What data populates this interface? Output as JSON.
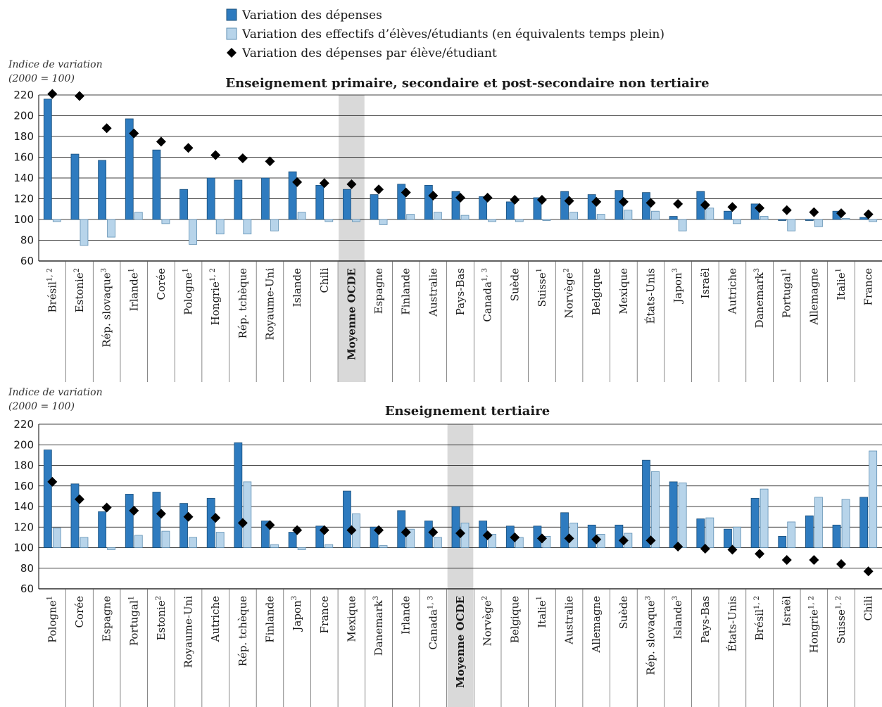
{
  "colors": {
    "expenditure": "#2e7bbf",
    "expenditure_edge": "#1b4f7a",
    "students": "#b7d4ea",
    "students_edge": "#5f8fb3",
    "per_student": "#000000",
    "average_band": "#d9d9d9",
    "grid": "#000000"
  },
  "legend": [
    {
      "label": "Variation des dépenses",
      "kind": "dark-bar"
    },
    {
      "label": "Variation des effectifs d’élèves/étudiants (en équivalents temps plein)",
      "kind": "light-bar"
    },
    {
      "label": "Variation des dépenses par élève/étudiant",
      "kind": "diamond"
    }
  ],
  "chart_data": [
    {
      "type": "bar",
      "title": "Enseignement primaire, secondaire et post-secondaire non tertiaire",
      "ylabel_line1": "Indice de variation",
      "ylabel_line2": "(2000 = 100)",
      "ylim": [
        60,
        220
      ],
      "yticks": [
        "60",
        "80",
        "100",
        "120",
        "140",
        "160",
        "180",
        "200",
        "220"
      ],
      "grid": true,
      "highlight_category": "Moyenne OCDE",
      "categories": [
        {
          "name": "Brésil",
          "sup": "1, 2"
        },
        {
          "name": "Estonie",
          "sup": "2"
        },
        {
          "name": "Rép. slovaque",
          "sup": "3"
        },
        {
          "name": "Irlande",
          "sup": "1"
        },
        {
          "name": "Corée",
          "sup": ""
        },
        {
          "name": "Pologne",
          "sup": "1"
        },
        {
          "name": "Hongrie",
          "sup": "1, 2"
        },
        {
          "name": "Rép. tchèque",
          "sup": ""
        },
        {
          "name": "Royaume-Uni",
          "sup": ""
        },
        {
          "name": "Islande",
          "sup": ""
        },
        {
          "name": "Chili",
          "sup": ""
        },
        {
          "name": "Moyenne OCDE",
          "sup": ""
        },
        {
          "name": "Espagne",
          "sup": ""
        },
        {
          "name": "Finlande",
          "sup": ""
        },
        {
          "name": "Australie",
          "sup": ""
        },
        {
          "name": "Pays-Bas",
          "sup": ""
        },
        {
          "name": "Canada",
          "sup": "1, 3"
        },
        {
          "name": "Suède",
          "sup": ""
        },
        {
          "name": "Suisse",
          "sup": "1"
        },
        {
          "name": "Norvège",
          "sup": "2"
        },
        {
          "name": "Belgique",
          "sup": ""
        },
        {
          "name": "Mexique",
          "sup": ""
        },
        {
          "name": "États-Unis",
          "sup": ""
        },
        {
          "name": "Japon",
          "sup": "3"
        },
        {
          "name": "Israël",
          "sup": ""
        },
        {
          "name": "Autriche",
          "sup": ""
        },
        {
          "name": "Danemark",
          "sup": "3"
        },
        {
          "name": "Portugal",
          "sup": "1"
        },
        {
          "name": "Allemagne",
          "sup": ""
        },
        {
          "name": "Italie",
          "sup": "1"
        },
        {
          "name": "France",
          "sup": ""
        }
      ],
      "series": [
        {
          "name": "Variation des dépenses",
          "kind": "dark-bar",
          "values": [
            216,
            163,
            157,
            197,
            167,
            129,
            140,
            138,
            140,
            146,
            133,
            129,
            124,
            134,
            133,
            127,
            122,
            117,
            121,
            127,
            124,
            128,
            126,
            103,
            127,
            108,
            115,
            99,
            99,
            108,
            102
          ]
        },
        {
          "name": "Variation des effectifs d’élèves/étudiants (en équivalents temps plein)",
          "kind": "light-bar",
          "values": [
            98,
            75,
            83,
            107,
            96,
            76,
            86,
            86,
            89,
            107,
            98,
            98,
            95,
            105,
            107,
            104,
            98,
            98,
            99,
            107,
            105,
            109,
            108,
            89,
            111,
            96,
            103,
            89,
            93,
            101,
            98
          ]
        },
        {
          "name": "Variation des dépenses par élève/étudiant",
          "kind": "diamond",
          "values": [
            221,
            219,
            188,
            183,
            175,
            169,
            162,
            159,
            156,
            136,
            135,
            134,
            129,
            126,
            123,
            121,
            121,
            119,
            119,
            118,
            117,
            117,
            116,
            115,
            114,
            112,
            111,
            109,
            107,
            106,
            105
          ]
        }
      ]
    },
    {
      "type": "bar",
      "title": "Enseignement tertiaire",
      "ylabel_line1": "Indice de variation",
      "ylabel_line2": "(2000 = 100)",
      "ylim": [
        60,
        220
      ],
      "yticks": [
        "60",
        "80",
        "100",
        "120",
        "140",
        "160",
        "180",
        "200",
        "220"
      ],
      "grid": true,
      "highlight_category": "Moyenne OCDE",
      "categories": [
        {
          "name": "Pologne",
          "sup": "1"
        },
        {
          "name": "Corée",
          "sup": ""
        },
        {
          "name": "Espagne",
          "sup": ""
        },
        {
          "name": "Portugal",
          "sup": "1"
        },
        {
          "name": "Estonie",
          "sup": "2"
        },
        {
          "name": "Royaume-Uni",
          "sup": ""
        },
        {
          "name": "Autriche",
          "sup": ""
        },
        {
          "name": "Rép. tchèque",
          "sup": ""
        },
        {
          "name": "Finlande",
          "sup": ""
        },
        {
          "name": "Japon",
          "sup": "3"
        },
        {
          "name": "France",
          "sup": ""
        },
        {
          "name": "Mexique",
          "sup": ""
        },
        {
          "name": "Danemark",
          "sup": "3"
        },
        {
          "name": "Irlande",
          "sup": ""
        },
        {
          "name": "Canada",
          "sup": "1, 3"
        },
        {
          "name": "Moyenne OCDE",
          "sup": ""
        },
        {
          "name": "Norvège",
          "sup": "2"
        },
        {
          "name": "Belgique",
          "sup": ""
        },
        {
          "name": "Italie",
          "sup": "1"
        },
        {
          "name": "Australie",
          "sup": ""
        },
        {
          "name": "Allemagne",
          "sup": ""
        },
        {
          "name": "Suède",
          "sup": ""
        },
        {
          "name": "Rép. slovaque",
          "sup": "3"
        },
        {
          "name": "Islande",
          "sup": "3"
        },
        {
          "name": "Pays-Bas",
          "sup": ""
        },
        {
          "name": "États-Unis",
          "sup": ""
        },
        {
          "name": "Brésil",
          "sup": "1, 2"
        },
        {
          "name": "Israël",
          "sup": ""
        },
        {
          "name": "Hongrie",
          "sup": "1, 2"
        },
        {
          "name": "Suisse",
          "sup": "1, 2"
        },
        {
          "name": "Chili",
          "sup": ""
        }
      ],
      "series": [
        {
          "name": "Variation des dépenses",
          "kind": "dark-bar",
          "values": [
            195,
            162,
            135,
            152,
            154,
            143,
            148,
            202,
            126,
            115,
            121,
            155,
            120,
            136,
            126,
            140,
            126,
            121,
            121,
            134,
            122,
            122,
            185,
            164,
            128,
            118,
            148,
            111,
            131,
            122,
            149
          ]
        },
        {
          "name": "Variation des effectifs d’élèves/étudiants (en équivalents temps plein)",
          "kind": "light-bar",
          "values": [
            119,
            110,
            98,
            112,
            116,
            110,
            115,
            164,
            103,
            98,
            103,
            133,
            102,
            118,
            110,
            124,
            113,
            110,
            111,
            124,
            113,
            114,
            174,
            163,
            129,
            120,
            157,
            125,
            149,
            147,
            194
          ]
        },
        {
          "name": "Variation des dépenses par élève/étudiant",
          "kind": "diamond",
          "values": [
            164,
            147,
            139,
            136,
            133,
            130,
            129,
            124,
            122,
            117,
            117,
            117,
            117,
            115,
            115,
            114,
            112,
            110,
            109,
            109,
            108,
            107,
            107,
            101,
            99,
            98,
            94,
            88,
            88,
            84,
            77
          ]
        }
      ]
    }
  ]
}
